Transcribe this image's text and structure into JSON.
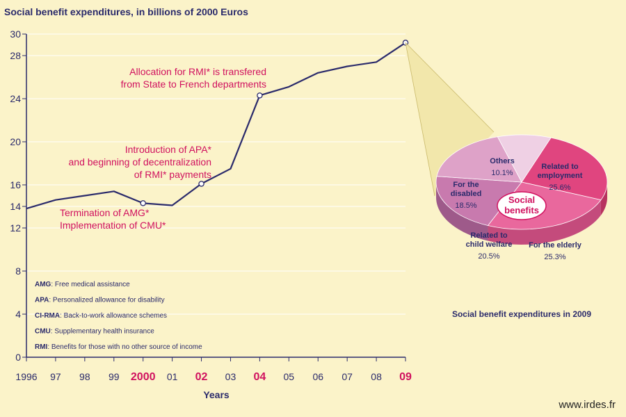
{
  "chart_data": [
    {
      "type": "line",
      "title": "Social benefit expenditures, in billions of 2000 Euros",
      "xlabel": "Years",
      "ylabel": "",
      "ylim": [
        0,
        30
      ],
      "yticks": [
        0,
        4,
        8,
        12,
        14,
        16,
        20,
        24,
        28,
        30
      ],
      "x": [
        "1996",
        "97",
        "98",
        "99",
        "2000",
        "01",
        "02",
        "03",
        "04",
        "05",
        "06",
        "07",
        "08",
        "09"
      ],
      "x_highlight": [
        "2000",
        "02",
        "04",
        "09"
      ],
      "values": [
        13.8,
        14.6,
        15.0,
        15.4,
        14.3,
        14.1,
        16.1,
        17.5,
        24.3,
        25.1,
        26.4,
        27.0,
        27.4,
        29.2
      ],
      "grid": "horizontal",
      "markers": [
        "2000",
        "02",
        "04",
        "09"
      ],
      "annotations": [
        {
          "x": "2000",
          "lines": [
            "Termination of AMG*",
            "Implementation of CMU*"
          ]
        },
        {
          "x": "02",
          "lines": [
            "Introduction of APA*",
            "and beginning of decentralization",
            "of RMI* payments"
          ]
        },
        {
          "x": "04",
          "lines": [
            "Allocation for RMI* is transfered",
            "from State to French departments"
          ]
        }
      ],
      "glossary": [
        {
          "abbr": "AMG",
          "text": ": Free medical assistance"
        },
        {
          "abbr": "APA",
          "text": ": Personalized allowance for disability"
        },
        {
          "abbr": "CI-RMA",
          "text": ": Back-to-work allowance schemes"
        },
        {
          "abbr": "CMU",
          "text": ": Supplementary health insurance"
        },
        {
          "abbr": "RMI",
          "text": ": Benefits for those with no other source of income"
        }
      ]
    },
    {
      "type": "pie",
      "title": "Social benefit expenditures in 2009",
      "center_label": [
        "Social",
        "benefits"
      ],
      "slices": [
        {
          "label": [
            "Related to",
            "employment"
          ],
          "value": 25.6,
          "display": "25.6%"
        },
        {
          "label": [
            "For the elderly"
          ],
          "value": 25.3,
          "display": "25.3%"
        },
        {
          "label": [
            "Related to",
            "child welfare"
          ],
          "value": 20.5,
          "display": "20.5%"
        },
        {
          "label": [
            "For the",
            "disabled"
          ],
          "value": 18.5,
          "display": "18.5%"
        },
        {
          "label": [
            "Others"
          ],
          "value": 10.1,
          "display": "10.1%"
        }
      ]
    }
  ],
  "colors": {
    "background": "#fbf3c9",
    "navy": "#2a2a6b",
    "magenta": "#d0105e",
    "grid": "#ffffff",
    "pie_slices": [
      "#e0457f",
      "#e9689d",
      "#c87aae",
      "#dea2c8",
      "#efd0e4"
    ],
    "pie_sides": [
      "#b8335f",
      "#c44b7c",
      "#9e5a8a",
      "#b884a6",
      "#c6aac0"
    ]
  },
  "footer": {
    "site": "www.irdes.fr"
  }
}
